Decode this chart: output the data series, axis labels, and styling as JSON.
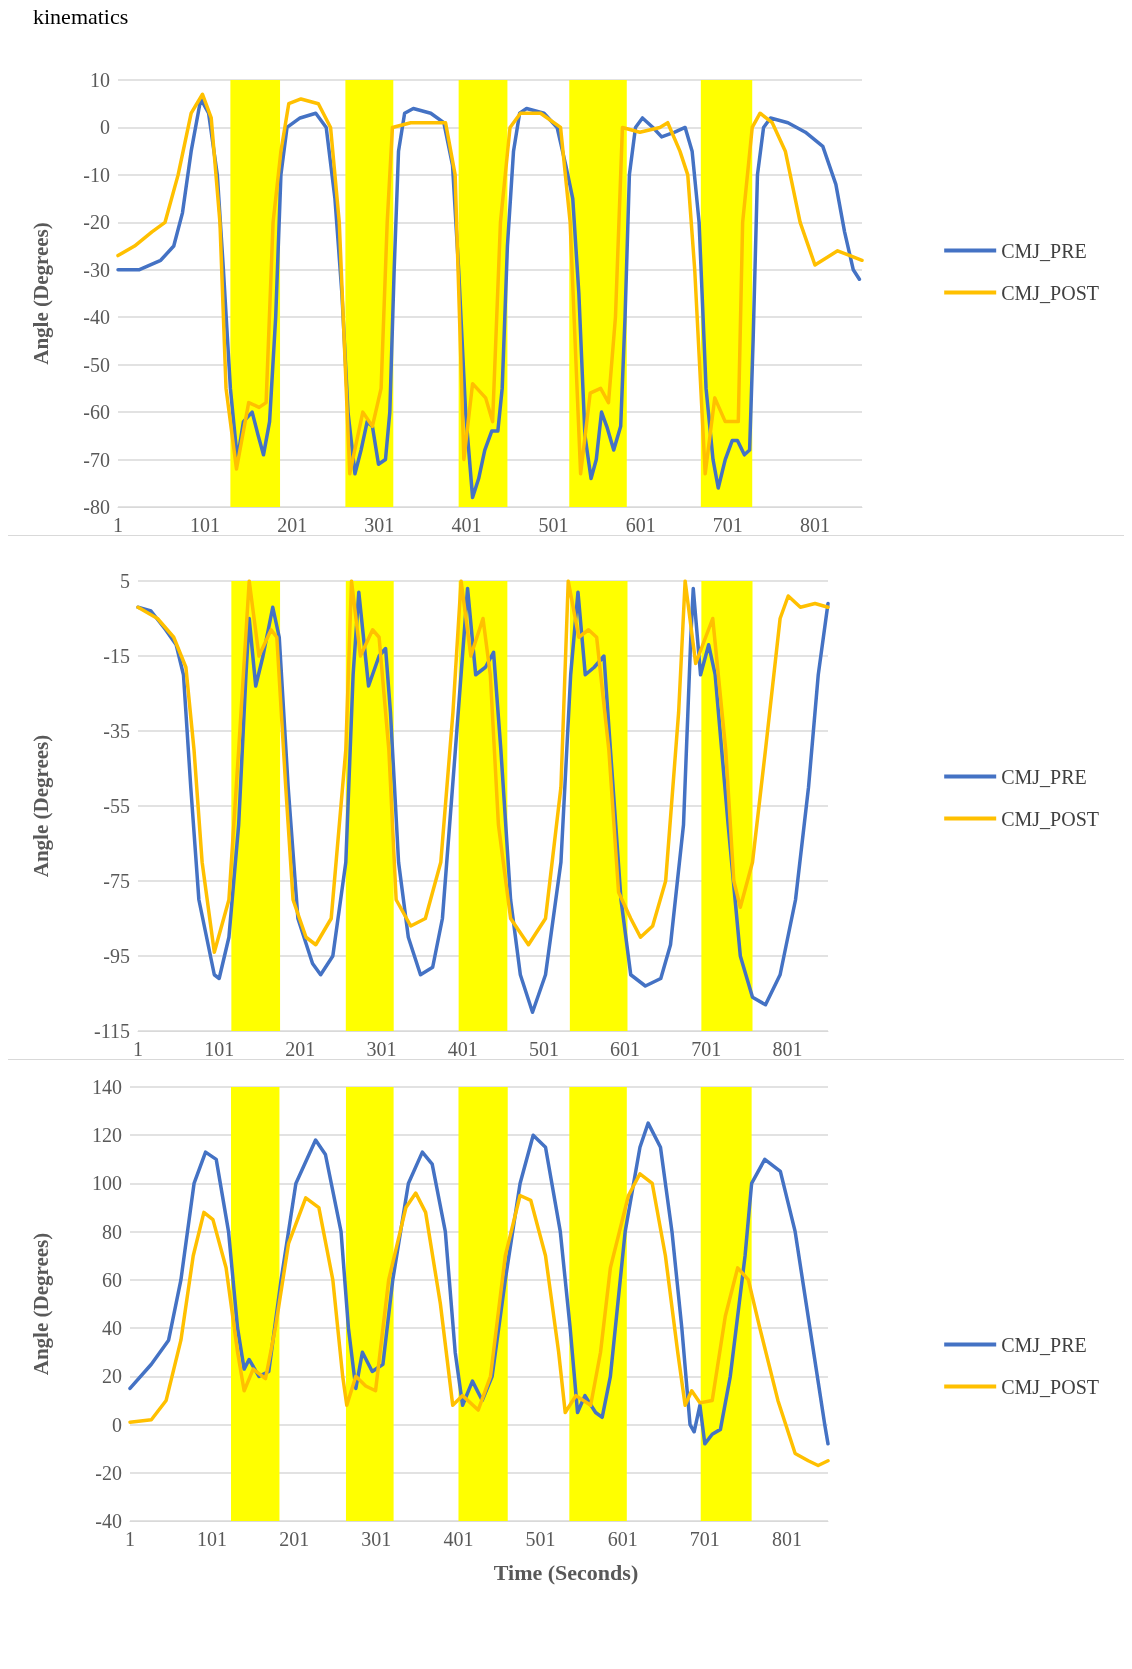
{
  "chart_data": [
    {
      "type": "line",
      "title": "kinematics",
      "ylabel": "Angle (Degrees)",
      "xlim": [
        1,
        855
      ],
      "xticks": [
        1,
        101,
        201,
        301,
        401,
        501,
        601,
        701,
        801
      ],
      "ylim": [
        -80,
        10
      ],
      "yticks": [
        -80,
        -70,
        -60,
        -50,
        -40,
        -30,
        -20,
        -10,
        0,
        10
      ],
      "grid": "y",
      "legend": "right",
      "marker": "none",
      "bands": [
        {
          "axis": "x",
          "from": 130,
          "to": 187,
          "color": "#ffff00"
        },
        {
          "axis": "x",
          "from": 262,
          "to": 317,
          "color": "#ffff00"
        },
        {
          "axis": "x",
          "from": 392,
          "to": 448,
          "color": "#ffff00"
        },
        {
          "axis": "x",
          "from": 519,
          "to": 585,
          "color": "#ffff00"
        },
        {
          "axis": "x",
          "from": 670,
          "to": 729,
          "color": "#ffff00"
        }
      ],
      "series": [
        {
          "name": "CMJ_PRE",
          "color": "#4472c4",
          "x": [
            1,
            25,
            50,
            65,
            75,
            85,
            96,
            105,
            115,
            122,
            130,
            138,
            145,
            155,
            162,
            168,
            175,
            182,
            188,
            195,
            210,
            228,
            240,
            250,
            258,
            265,
            273,
            280,
            287,
            293,
            300,
            308,
            313,
            318,
            323,
            330,
            340,
            360,
            375,
            385,
            392,
            400,
            408,
            415,
            422,
            430,
            437,
            442,
            448,
            455,
            462,
            470,
            490,
            505,
            515,
            523,
            530,
            537,
            544,
            550,
            556,
            562,
            570,
            578,
            583,
            588,
            595,
            603,
            615,
            625,
            640,
            652,
            660,
            668,
            676,
            684,
            690,
            698,
            706,
            712,
            720,
            726,
            730,
            735,
            742,
            750,
            770,
            790,
            810,
            825,
            835,
            845,
            852
          ],
          "values": [
            -30,
            -30,
            -28,
            -25,
            -18,
            -5,
            6,
            3,
            -10,
            -30,
            -55,
            -70,
            -62,
            -60,
            -65,
            -69,
            -62,
            -40,
            -10,
            0,
            2,
            3,
            0,
            -15,
            -35,
            -60,
            -73,
            -68,
            -62,
            -63,
            -71,
            -70,
            -60,
            -30,
            -5,
            3,
            4,
            3,
            1,
            -8,
            -30,
            -60,
            -78,
            -74,
            -68,
            -64,
            -64,
            -55,
            -25,
            -5,
            3,
            4,
            3,
            0,
            -8,
            -15,
            -35,
            -65,
            -74,
            -70,
            -60,
            -63,
            -68,
            -63,
            -40,
            -10,
            0,
            2,
            0,
            -2,
            -1,
            0,
            -5,
            -20,
            -55,
            -70,
            -76,
            -70,
            -66,
            -66,
            -69,
            -68,
            -45,
            -10,
            0,
            2,
            1,
            -1,
            -4,
            -12,
            -22,
            -30,
            -32
          ]
        },
        {
          "name": "CMJ_POST",
          "color": "#ffc000",
          "x": [
            1,
            20,
            40,
            55,
            70,
            85,
            98,
            108,
            118,
            125,
            137,
            151,
            163,
            171,
            179,
            188,
            197,
            211,
            231,
            245,
            255,
            267,
            282,
            293,
            303,
            310,
            316,
            337,
            377,
            388,
            398,
            408,
            423,
            431,
            440,
            451,
            463,
            486,
            509,
            520,
            532,
            543,
            555,
            564,
            572,
            580,
            600,
            623,
            632,
            646,
            655,
            663,
            675,
            686,
            698,
            713,
            718,
            729,
            738,
            752,
            767,
            784,
            801,
            827,
            855
          ],
          "values": [
            -27,
            -25,
            -22,
            -20,
            -10,
            3,
            7,
            2,
            -20,
            -55,
            -72,
            -58,
            -59,
            -58,
            -20,
            -5,
            5,
            6,
            5,
            0,
            -20,
            -73,
            -60,
            -63,
            -55,
            -20,
            0,
            1,
            1,
            -10,
            -70,
            -54,
            -57,
            -62,
            -20,
            0,
            3,
            3,
            0,
            -20,
            -73,
            -56,
            -55,
            -58,
            -40,
            0,
            -1,
            0,
            1,
            -5,
            -10,
            -30,
            -73,
            -57,
            -62,
            -62,
            -20,
            0,
            3,
            1,
            -5,
            -20,
            -29,
            -26,
            -28
          ]
        }
      ]
    },
    {
      "type": "line",
      "ylabel": "Angle (Degrees)",
      "xlim": [
        1,
        851
      ],
      "xticks": [
        1,
        101,
        201,
        301,
        401,
        501,
        601,
        701,
        801
      ],
      "ylim": [
        -115,
        5
      ],
      "yticks": [
        -115,
        -95,
        -75,
        -55,
        -35,
        -15,
        5
      ],
      "grid": "y",
      "legend": "right",
      "marker": "none",
      "bands": [
        {
          "axis": "x",
          "from": 116,
          "to": 176,
          "color": "#ffff00"
        },
        {
          "axis": "x",
          "from": 257,
          "to": 316,
          "color": "#ffff00"
        },
        {
          "axis": "x",
          "from": 396,
          "to": 456,
          "color": "#ffff00"
        },
        {
          "axis": "x",
          "from": 533,
          "to": 604,
          "color": "#ffff00"
        },
        {
          "axis": "x",
          "from": 695,
          "to": 758,
          "color": "#ffff00"
        }
      ],
      "series": [
        {
          "name": "CMJ_PRE",
          "color": "#4472c4",
          "x": [
            1,
            17,
            35,
            48,
            57,
            66,
            76,
            95,
            101,
            113,
            125,
            134,
            138,
            146,
            155,
            167,
            175,
            186,
            198,
            216,
            226,
            241,
            257,
            266,
            273,
            285,
            298,
            306,
            312,
            322,
            334,
            349,
            364,
            376,
            392,
            407,
            417,
            429,
            439,
            448,
            460,
            472,
            487,
            503,
            522,
            534,
            543,
            552,
            563,
            575,
            583,
            596,
            608,
            626,
            645,
            657,
            673,
            682,
            685,
            694,
            704,
            712,
            728,
            743,
            758,
            774,
            792,
            811,
            827,
            839,
            851
          ],
          "values": [
            -2,
            -3,
            -8,
            -12,
            -20,
            -50,
            -80,
            -100,
            -101,
            -90,
            -60,
            -20,
            -5,
            -23,
            -15,
            -2,
            -10,
            -50,
            -85,
            -97,
            -100,
            -95,
            -70,
            -20,
            2,
            -23,
            -15,
            -13,
            -30,
            -70,
            -90,
            -100,
            -98,
            -85,
            -40,
            3,
            -20,
            -18,
            -14,
            -40,
            -80,
            -100,
            -110,
            -100,
            -70,
            -20,
            2,
            -20,
            -18,
            -15,
            -40,
            -80,
            -100,
            -103,
            -101,
            -92,
            -60,
            -10,
            3,
            -20,
            -12,
            -20,
            -60,
            -95,
            -106,
            -108,
            -100,
            -80,
            -50,
            -20,
            -1
          ]
        },
        {
          "name": "CMJ_POST",
          "color": "#ffc000",
          "x": [
            1,
            25,
            45,
            60,
            70,
            80,
            95,
            113,
            125,
            138,
            150,
            165,
            172,
            183,
            192,
            208,
            220,
            239,
            257,
            264,
            275,
            290,
            298,
            310,
            319,
            337,
            355,
            374,
            389,
            399,
            411,
            426,
            435,
            445,
            460,
            482,
            503,
            522,
            531,
            544,
            556,
            566,
            581,
            593,
            608,
            620,
            635,
            651,
            667,
            675,
            688,
            709,
            725,
            735,
            743,
            758,
            774,
            792,
            802,
            817,
            835,
            851
          ],
          "values": [
            -2,
            -5,
            -10,
            -18,
            -40,
            -70,
            -94,
            -80,
            -40,
            5,
            -15,
            -8,
            -10,
            -50,
            -80,
            -90,
            -92,
            -85,
            -40,
            5,
            -15,
            -8,
            -10,
            -40,
            -80,
            -87,
            -85,
            -70,
            -30,
            5,
            -15,
            -5,
            -20,
            -60,
            -85,
            -92,
            -85,
            -50,
            5,
            -10,
            -8,
            -10,
            -40,
            -78,
            -85,
            -90,
            -87,
            -75,
            -30,
            5,
            -17,
            -5,
            -40,
            -75,
            -82,
            -70,
            -40,
            -5,
            1,
            -2,
            -1,
            -2
          ]
        }
      ]
    },
    {
      "type": "line",
      "ylabel": "Angle (Degrees)",
      "xlabel": "Time (Seconds)",
      "xlim": [
        1,
        851
      ],
      "xticks": [
        1,
        101,
        201,
        301,
        401,
        501,
        601,
        701,
        801
      ],
      "ylim": [
        -40,
        140
      ],
      "yticks": [
        -40,
        -20,
        0,
        20,
        40,
        60,
        80,
        100,
        120,
        140
      ],
      "grid": "y",
      "legend": "right",
      "marker": "none",
      "bands": [
        {
          "axis": "x",
          "from": 124,
          "to": 183,
          "color": "#ffff00"
        },
        {
          "axis": "x",
          "from": 264,
          "to": 322,
          "color": "#ffff00"
        },
        {
          "axis": "x",
          "from": 401,
          "to": 461,
          "color": "#ffff00"
        },
        {
          "axis": "x",
          "from": 536,
          "to": 606,
          "color": "#ffff00"
        },
        {
          "axis": "x",
          "from": 696,
          "to": 758,
          "color": "#ffff00"
        }
      ],
      "series": [
        {
          "name": "CMJ_PRE",
          "color": "#4472c4",
          "x": [
            1,
            27,
            48,
            63,
            79,
            93,
            106,
            121,
            132,
            140,
            146,
            158,
            170,
            185,
            203,
            227,
            239,
            258,
            267,
            276,
            284,
            296,
            309,
            321,
            340,
            357,
            369,
            385,
            397,
            406,
            418,
            430,
            442,
            458,
            476,
            492,
            507,
            525,
            537,
            546,
            555,
            568,
            576,
            586,
            604,
            622,
            632,
            647,
            661,
            673,
            683,
            688,
            695,
            701,
            710,
            720,
            732,
            750,
            758,
            774,
            793,
            811,
            829,
            847,
            851
          ],
          "values": [
            15,
            25,
            35,
            60,
            100,
            113,
            110,
            80,
            40,
            23,
            27,
            20,
            22,
            60,
            100,
            118,
            112,
            80,
            40,
            15,
            30,
            22,
            25,
            60,
            100,
            113,
            108,
            80,
            30,
            8,
            18,
            10,
            20,
            60,
            100,
            120,
            115,
            80,
            40,
            5,
            12,
            5,
            3,
            20,
            80,
            115,
            125,
            115,
            80,
            40,
            0,
            -3,
            8,
            -8,
            -4,
            -2,
            20,
            70,
            100,
            110,
            105,
            80,
            40,
            0,
            -8
          ]
        },
        {
          "name": "CMJ_POST",
          "color": "#ffc000",
          "x": [
            1,
            27,
            45,
            63,
            78,
            91,
            102,
            118,
            132,
            140,
            151,
            166,
            178,
            194,
            215,
            231,
            248,
            260,
            265,
            276,
            288,
            300,
            316,
            337,
            349,
            361,
            379,
            394,
            406,
            425,
            440,
            458,
            476,
            489,
            507,
            523,
            531,
            544,
            562,
            574,
            586,
            608,
            622,
            637,
            653,
            668,
            677,
            685,
            695,
            710,
            726,
            741,
            754,
            768,
            790,
            811,
            827,
            839,
            851
          ],
          "values": [
            1,
            2,
            10,
            35,
            70,
            88,
            85,
            65,
            30,
            14,
            23,
            19,
            40,
            75,
            94,
            90,
            60,
            20,
            8,
            20,
            16,
            14,
            60,
            90,
            96,
            88,
            50,
            8,
            12,
            6,
            20,
            70,
            95,
            93,
            70,
            30,
            5,
            12,
            8,
            30,
            65,
            95,
            104,
            100,
            70,
            30,
            8,
            14,
            9,
            10,
            45,
            65,
            60,
            40,
            10,
            -12,
            -15,
            -17,
            -15
          ]
        }
      ]
    }
  ]
}
